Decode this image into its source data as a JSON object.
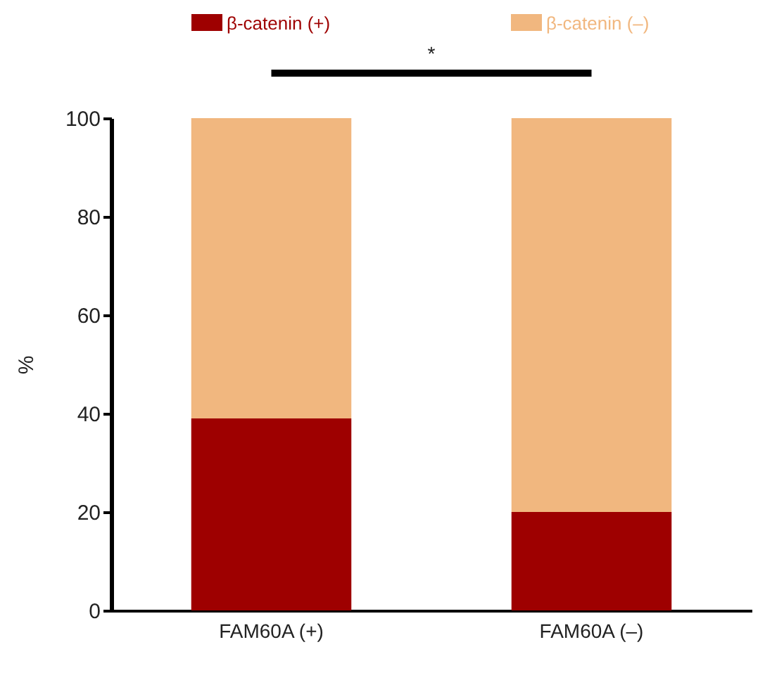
{
  "chart_data": {
    "type": "bar",
    "stacked": true,
    "ylabel": "%",
    "categories": [
      "FAM60A (+)",
      "FAM60A (–)"
    ],
    "series": [
      {
        "name": "β-catenin (+)",
        "color": "#9e0000",
        "values": [
          39,
          20
        ]
      },
      {
        "name": "β-catenin (–)",
        "color": "#f1b77f",
        "values": [
          61,
          80
        ]
      }
    ],
    "ylim": [
      0,
      100
    ],
    "yticks": [
      0,
      20,
      40,
      60,
      80,
      100
    ],
    "grid": false,
    "legend": "top",
    "annotations": [
      "*"
    ]
  }
}
